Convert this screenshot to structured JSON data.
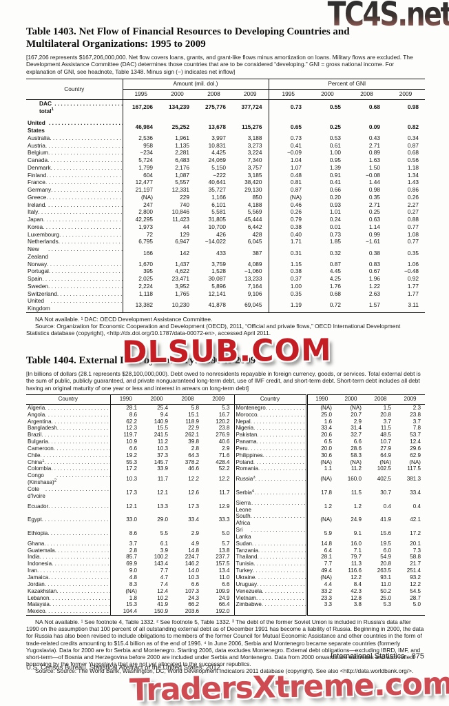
{
  "watermarks": {
    "top_right": "TC4S.net",
    "center": "DLSUB.COM",
    "bottom": "TradersXtreme.com"
  },
  "footer": {
    "section": "International Statistics",
    "page": "875",
    "credit": "U.S. Census Bureau, Statistical Abstract of the United States: 2012"
  },
  "table1403": {
    "title_lines": [
      "Table 1403. Net Flow of Financial Resources to Developing Countries and",
      "Multilateral Organizations: 1995 to 2009"
    ],
    "headnote": "[167,206 represents $167,206,000,000. Net flow covers loans, grants, and grant-like flows minus amortization on loans. Military flows are excluded. The Development Assistance Committee (DAC) determines those countries that are to be considered “developing.” GNI = gross national income. For explanation of GNI, see headnote, Table 1348. Minus sign (−) indicates net inflow]",
    "country_header": "Country",
    "groups": [
      "Amount (mil. dol.)",
      "Percent of GNI"
    ],
    "years": [
      "1995",
      "2000",
      "2008",
      "2009"
    ],
    "rows": [
      {
        "name": "DAC total",
        "sup": "1",
        "bold": true,
        "indent": true,
        "spacer_after": true,
        "amount": [
          "167,206",
          "134,239",
          "275,776",
          "377,724"
        ],
        "pct": [
          "0.73",
          "0.55",
          "0.68",
          "0.98"
        ]
      },
      {
        "name": "United States",
        "bold": true,
        "amount": [
          "46,984",
          "25,252",
          "13,678",
          "115,276"
        ],
        "pct": [
          "0.65",
          "0.25",
          "0.09",
          "0.82"
        ]
      },
      {
        "name": "Australia",
        "amount": [
          "2,536",
          "1,961",
          "3,997",
          "3,188"
        ],
        "pct": [
          "0.73",
          "0.53",
          "0.43",
          "0.34"
        ]
      },
      {
        "name": "Austria",
        "amount": [
          "958",
          "1,135",
          "10,831",
          "3,273"
        ],
        "pct": [
          "0.41",
          "0.61",
          "2.71",
          "0.87"
        ]
      },
      {
        "name": "Belgium",
        "amount": [
          "−234",
          "2,281",
          "4,425",
          "3,224"
        ],
        "pct": [
          "−0.09",
          "1.00",
          "0.89",
          "0.68"
        ]
      },
      {
        "name": "Canada",
        "amount": [
          "5,724",
          "6,483",
          "24,069",
          "7,340"
        ],
        "pct": [
          "1.04",
          "0.95",
          "1.63",
          "0.56"
        ]
      },
      {
        "name": "Denmark",
        "amount": [
          "1,799",
          "2,176",
          "5,150",
          "3,757"
        ],
        "pct": [
          "1.07",
          "1.39",
          "1.50",
          "1.18"
        ]
      },
      {
        "name": "Finland",
        "amount": [
          "604",
          "1,087",
          "−222",
          "3,185"
        ],
        "pct": [
          "0.48",
          "0.91",
          "−0.08",
          "1.34"
        ]
      },
      {
        "name": "France",
        "amount": [
          "12,477",
          "5,557",
          "40,641",
          "38,420"
        ],
        "pct": [
          "0.81",
          "0.41",
          "1.44",
          "1.43"
        ]
      },
      {
        "name": "Germany",
        "amount": [
          "21,197",
          "12,331",
          "35,727",
          "29,130"
        ],
        "pct": [
          "0.87",
          "0.66",
          "0.98",
          "0.86"
        ]
      },
      {
        "name": "Greece",
        "amount": [
          "(NA)",
          "229",
          "1,166",
          "850"
        ],
        "pct": [
          "(NA)",
          "0.20",
          "0.35",
          "0.26"
        ]
      },
      {
        "name": "Ireland",
        "amount": [
          "247",
          "740",
          "6,101",
          "4,188"
        ],
        "pct": [
          "0.46",
          "0.93",
          "2.71",
          "2.27"
        ]
      },
      {
        "name": "Italy",
        "amount": [
          "2,800",
          "10,846",
          "5,581",
          "5,569"
        ],
        "pct": [
          "0.26",
          "1.01",
          "0.25",
          "0.27"
        ]
      },
      {
        "name": "Japan",
        "amount": [
          "42,295",
          "11,423",
          "31,805",
          "45,444"
        ],
        "pct": [
          "0.79",
          "0.24",
          "0.63",
          "0.88"
        ]
      },
      {
        "name": "Korea",
        "amount": [
          "1,973",
          "44",
          "10,700",
          "6,442"
        ],
        "pct": [
          "0.38",
          "0.01",
          "1.14",
          "0.77"
        ]
      },
      {
        "name": "Luxembourg",
        "amount": [
          "72",
          "129",
          "426",
          "428"
        ],
        "pct": [
          "0.40",
          "0.73",
          "0.99",
          "1.08"
        ]
      },
      {
        "name": "Netherlands",
        "amount": [
          "6,795",
          "6,947",
          "−14,022",
          "6,045"
        ],
        "pct": [
          "1.71",
          "1.85",
          "−1.61",
          "0.77"
        ]
      },
      {
        "name": "New Zealand",
        "amount": [
          "166",
          "142",
          "433",
          "387"
        ],
        "pct": [
          "0.31",
          "0.32",
          "0.38",
          "0.35"
        ]
      },
      {
        "name": "Norway",
        "amount": [
          "1,670",
          "1,437",
          "3,759",
          "4,089"
        ],
        "pct": [
          "1.15",
          "0.87",
          "0.83",
          "1.06"
        ]
      },
      {
        "name": "Portugal",
        "amount": [
          "395",
          "4,622",
          "1,528",
          "−1,060"
        ],
        "pct": [
          "0.38",
          "4.45",
          "0.67",
          "−0.48"
        ]
      },
      {
        "name": "Spain",
        "amount": [
          "2,025",
          "23,471",
          "30,087",
          "13,233"
        ],
        "pct": [
          "0.37",
          "4.25",
          "1.96",
          "0.92"
        ]
      },
      {
        "name": "Sweden",
        "amount": [
          "2,224",
          "3,952",
          "5,896",
          "7,164"
        ],
        "pct": [
          "1.00",
          "1.76",
          "1.22",
          "1.77"
        ]
      },
      {
        "name": "Switzerland",
        "amount": [
          "1,118",
          "1,765",
          "12,141",
          "9,106"
        ],
        "pct": [
          "0.35",
          "0.68",
          "2.63",
          "1.77"
        ]
      },
      {
        "name": "United Kingdom",
        "amount": [
          "13,382",
          "10,230",
          "41,878",
          "69,045"
        ],
        "pct": [
          "1.19",
          "0.72",
          "1.57",
          "3.11"
        ]
      }
    ],
    "footnotes": [
      "NA Not available. ¹ DAC: OECD Development Assistance Committee.",
      "Source: Organization for Economic Cooperation and Development (OECD), 2011, “Official and private flows,” OECD International Development Statistics database (copyright), <http://dx.doi.org/10.1787/data-00072-en>, accessed April 2011."
    ]
  },
  "table1404": {
    "title": "Table 1404. External Debt by Country: 1990 to 2009",
    "headnote": "[In billions of dollars (28.1 represents $28,100,000,000). Debt owed to nonresidents repayable in foreign currency, goods, or services. Total external debt is the sum of public, publicly guaranteed, and private nonguaranteed long-term debt, use of IMF credit, and short-term debt. Short-term debt includes all debt having an original maturity of one year or less and interest in arrears on long-term debt]",
    "country_header": "Country",
    "years": [
      "1990",
      "2000",
      "2008",
      "2009"
    ],
    "rows": [
      {
        "left": {
          "name": "Algeria",
          "values": [
            "28.1",
            "25.4",
            "5.8",
            "5.3"
          ]
        },
        "right": {
          "name": "Montenegro",
          "values": [
            "(NA)",
            "(NA)",
            "1.5",
            "2.3"
          ]
        }
      },
      {
        "left": {
          "name": "Angola",
          "values": [
            "8.6",
            "9.4",
            "15.1",
            "16.7"
          ]
        },
        "right": {
          "name": "Morocco",
          "values": [
            "25.0",
            "20.7",
            "20.8",
            "23.8"
          ]
        }
      },
      {
        "left": {
          "name": "Argentina",
          "values": [
            "62.2",
            "140.9",
            "118.9",
            "120.2"
          ]
        },
        "right": {
          "name": "Nepal",
          "values": [
            "1.6",
            "2.9",
            "3.7",
            "3.7"
          ]
        }
      },
      {
        "left": {
          "name": "Bangladesh",
          "values": [
            "12.3",
            "15.5",
            "22.9",
            "23.8"
          ]
        },
        "right": {
          "name": "Nigeria",
          "values": [
            "33.4",
            "31.4",
            "11.5",
            "7.8"
          ]
        }
      },
      {
        "left": {
          "name": "Brazil",
          "values": [
            "119.7",
            "241.5",
            "262.1",
            "276.9"
          ]
        },
        "right": {
          "name": "Pakistan",
          "values": [
            "20.6",
            "32.7",
            "48.5",
            "53.7"
          ]
        }
      },
      {
        "left": {
          "name": "Bulgaria",
          "values": [
            "10.9",
            "11.2",
            "39.8",
            "40.6"
          ]
        },
        "right": {
          "name": "Panama",
          "values": [
            "6.5",
            "6.6",
            "10.7",
            "12.4"
          ]
        }
      },
      {
        "left": {
          "name": "Cameroon",
          "values": [
            "6.6",
            "10.3",
            "2.8",
            "2.9"
          ]
        },
        "right": {
          "name": "Peru",
          "values": [
            "20.0",
            "28.6",
            "27.9",
            "29.6"
          ]
        }
      },
      {
        "left": {
          "name": "Chile",
          "values": [
            "19.2",
            "37.3",
            "64.3",
            "71.6"
          ]
        },
        "right": {
          "name": "Philippines",
          "values": [
            "30.6",
            "58.3",
            "64.9",
            "62.9"
          ]
        }
      },
      {
        "left": {
          "name": "China",
          "sup": "1",
          "values": [
            "55.3",
            "145.7",
            "378.2",
            "428.4"
          ]
        },
        "right": {
          "name": "Poland",
          "values": [
            "(NA)",
            "(NA)",
            "(NA)",
            "(NA)"
          ]
        }
      },
      {
        "left": {
          "name": "Colombia",
          "values": [
            "17.2",
            "33.9",
            "46.6",
            "52.2"
          ]
        },
        "right": {
          "name": "Romania",
          "values": [
            "1.1",
            "11.2",
            "102.5",
            "117.5"
          ]
        }
      },
      {
        "left": {
          "name": "Congo (Kinshasa)",
          "sup": "2",
          "values": [
            "10.3",
            "11.7",
            "12.2",
            "12.2"
          ]
        },
        "right": {
          "name": "Russia",
          "sup": "3",
          "values": [
            "(NA)",
            "160.0",
            "402.5",
            "381.3"
          ]
        }
      },
      {
        "left": {
          "name": "Cote d'Ivoire",
          "values": [
            "17.3",
            "12.1",
            "12.6",
            "11.7"
          ]
        },
        "right": {
          "name": "Serbia",
          "sup": "4",
          "values": [
            "17.8",
            "11.5",
            "30.7",
            "33.4"
          ]
        }
      },
      {
        "left": {
          "name": "Ecuador",
          "values": [
            "12.1",
            "13.3",
            "17.3",
            "12.9"
          ]
        },
        "right": {
          "name": "Sierra Leone",
          "values": [
            "1.2",
            "1.2",
            "0.4",
            "0.4"
          ]
        }
      },
      {
        "left": {
          "name": "Egypt",
          "values": [
            "33.0",
            "29.0",
            "33.4",
            "33.3"
          ]
        },
        "right": {
          "name": "South Africa",
          "values": [
            "(NA)",
            "24.9",
            "41.9",
            "42.1"
          ]
        }
      },
      {
        "left": {
          "name": "Ethiopia",
          "values": [
            "8.6",
            "5.5",
            "2.9",
            "5.0"
          ]
        },
        "right": {
          "name": "Sri Lanka",
          "values": [
            "5.9",
            "9.1",
            "15.6",
            "17.2"
          ]
        }
      },
      {
        "left": {
          "name": "Ghana",
          "values": [
            "3.7",
            "6.1",
            "4.9",
            "5.7"
          ]
        },
        "right": {
          "name": "Sudan",
          "values": [
            "14.8",
            "16.0",
            "19.5",
            "20.1"
          ]
        }
      },
      {
        "left": {
          "name": "Guatemala",
          "values": [
            "2.8",
            "3.9",
            "14.8",
            "13.8"
          ]
        },
        "right": {
          "name": "Tanzania",
          "values": [
            "6.4",
            "7.1",
            "6.0",
            "7.3"
          ]
        }
      },
      {
        "left": {
          "name": "India",
          "values": [
            "85.7",
            "100.2",
            "224.7",
            "237.7"
          ]
        },
        "right": {
          "name": "Thailand",
          "values": [
            "28.1",
            "79.7",
            "54.9",
            "58.8"
          ]
        }
      },
      {
        "left": {
          "name": "Indonesia",
          "values": [
            "69.9",
            "143.4",
            "146.2",
            "157.5"
          ]
        },
        "right": {
          "name": "Tunisia",
          "values": [
            "7.7",
            "11.3",
            "20.8",
            "21.7"
          ]
        }
      },
      {
        "left": {
          "name": "Iran",
          "values": [
            "9.0",
            "7.7",
            "14.0",
            "13.4"
          ]
        },
        "right": {
          "name": "Turkey",
          "values": [
            "49.4",
            "116.6",
            "263.5",
            "251.4"
          ]
        }
      },
      {
        "left": {
          "name": "Jamaica",
          "values": [
            "4.8",
            "4.7",
            "10.3",
            "11.0"
          ]
        },
        "right": {
          "name": "Ukraine",
          "values": [
            "(NA)",
            "12.2",
            "93.1",
            "93.2"
          ]
        }
      },
      {
        "left": {
          "name": "Jordan",
          "values": [
            "8.3",
            "7.4",
            "6.6",
            "6.6"
          ]
        },
        "right": {
          "name": "Uruguay",
          "values": [
            "4.4",
            "8.4",
            "11.0",
            "12.2"
          ]
        }
      },
      {
        "left": {
          "name": "Kazakhstan",
          "values": [
            "(NA)",
            "12.4",
            "107.3",
            "109.9"
          ]
        },
        "right": {
          "name": "Venezuela",
          "values": [
            "33.2",
            "42.3",
            "50.2",
            "54.5"
          ]
        }
      },
      {
        "left": {
          "name": "Lebanon",
          "values": [
            "1.8",
            "10.2",
            "24.3",
            "24.9"
          ]
        },
        "right": {
          "name": "Vietnam",
          "values": [
            "23.3",
            "12.8",
            "25.0",
            "28.7"
          ]
        }
      },
      {
        "left": {
          "name": "Malaysia",
          "values": [
            "15.3",
            "41.9",
            "66.2",
            "66.4"
          ]
        },
        "right": {
          "name": "Zimbabwe",
          "values": [
            "3.3",
            "3.8",
            "5.3",
            "5.0"
          ]
        }
      },
      {
        "left": {
          "name": "Mexico",
          "values": [
            "104.4",
            "150.9",
            "203.6",
            "192.0"
          ]
        },
        "right": null
      }
    ],
    "footnotes": [
      "NA Not available. ¹ See footnote 4, Table 1332. ² See footnote 5, Table 1332. ³ The debt of the former Soviet Union is included in Russia's data after 1990 on the assumption that 100 percent of all outstanding external debt as of December 1991 has become a liability of Russia. Beginning in 2000, the data for Russia has also been revised to include obligations to members of the former Council for Mutual Economic Assistance and other countries in the form of trade-related credits amounting to $15.4 billion as of the end of 1996. ⁴ In June 2006, Serbia and Montenegro became separate countries (formerly Yugoslavia). Data for 2000 are for Serbia and Montenegro. Starting 2006, data excludes Montenegro. External debt obligations—excluding IBRD, IMF, and short-term—of Bosnia and Herzegovina before 2000 are included under Serbia and Montenegro. Data from 2000 onwards are estimates and also reflect borrowing by the former Yugoslavia that are not yet allocated to the successor republics.",
      "Source: Source: The World Bank, Washington, DC, World Development Indicators 2011 database (copyright). See also <http://data.worldbank.org/>."
    ]
  }
}
